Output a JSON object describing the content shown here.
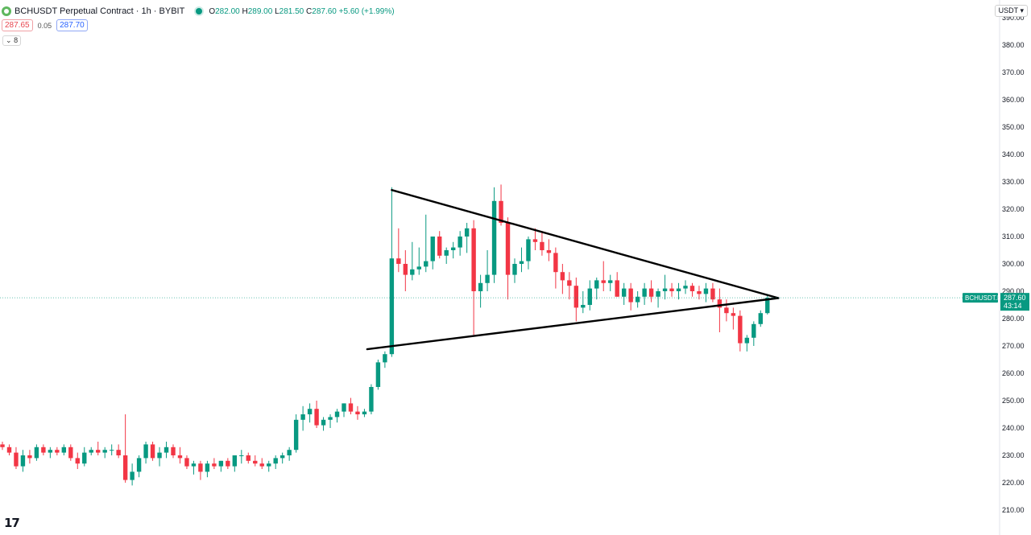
{
  "header": {
    "title": "BCHUSDT Perpetual Contract · 1h · BYBIT",
    "open_label": "O",
    "open": "282.00",
    "high_label": "H",
    "high": "289.00",
    "low_label": "L",
    "low": "281.50",
    "close_label": "C",
    "close": "287.60",
    "change": "+5.60 (+1.99%)"
  },
  "bidask": {
    "sell": "287.65",
    "spread": "0.05",
    "buy": "287.70"
  },
  "indicator_toggle": "8",
  "currency_button": "USDT",
  "logo": "17",
  "colors": {
    "up": "#089981",
    "down": "#f23645",
    "trendline": "#000000",
    "price_line": "#089981"
  },
  "chart_data": {
    "type": "candlestick",
    "symbol_label": "BCHUSDT.P",
    "last_price": "287.60",
    "countdown": "43:14",
    "ylim": [
      208,
      393
    ],
    "y_ticks": [
      "210.00",
      "220.00",
      "230.00",
      "240.00",
      "250.00",
      "260.00",
      "270.00",
      "280.00",
      "290.00",
      "300.00",
      "310.00",
      "320.00",
      "330.00",
      "340.00",
      "350.00",
      "360.00",
      "370.00",
      "380.00",
      "390.00"
    ],
    "candles": [
      [
        234,
        235,
        232,
        233
      ],
      [
        233,
        234,
        230,
        231
      ],
      [
        231,
        233,
        225,
        226
      ],
      [
        226,
        232,
        224,
        230
      ],
      [
        230,
        232,
        227,
        229
      ],
      [
        229,
        234,
        228,
        233
      ],
      [
        233,
        234,
        230,
        231
      ],
      [
        231,
        233,
        229,
        232
      ],
      [
        232,
        233,
        230,
        231
      ],
      [
        231,
        234,
        230,
        233
      ],
      [
        233,
        234,
        228,
        229
      ],
      [
        229,
        231,
        225,
        227
      ],
      [
        227,
        233,
        226,
        231
      ],
      [
        231,
        233,
        230,
        232
      ],
      [
        232,
        235,
        230,
        231
      ],
      [
        231,
        233,
        229,
        232
      ],
      [
        232,
        234,
        230,
        232
      ],
      [
        232,
        234,
        229,
        230
      ],
      [
        230,
        245,
        220,
        221
      ],
      [
        221,
        227,
        219,
        224
      ],
      [
        224,
        230,
        222,
        229
      ],
      [
        229,
        235,
        227,
        234
      ],
      [
        234,
        235,
        228,
        229
      ],
      [
        229,
        233,
        226,
        231
      ],
      [
        231,
        235,
        229,
        233
      ],
      [
        233,
        234,
        229,
        230
      ],
      [
        230,
        233,
        227,
        229
      ],
      [
        229,
        230,
        225,
        226
      ],
      [
        226,
        228,
        223,
        227
      ],
      [
        227,
        228,
        221,
        224
      ],
      [
        224,
        228,
        222,
        227
      ],
      [
        227,
        229,
        225,
        226
      ],
      [
        226,
        228,
        224,
        228
      ],
      [
        228,
        229,
        225,
        226
      ],
      [
        226,
        229,
        224,
        230
      ],
      [
        230,
        232,
        227,
        230
      ],
      [
        230,
        231,
        227,
        228
      ],
      [
        228,
        230,
        226,
        227
      ],
      [
        227,
        229,
        225,
        226
      ],
      [
        226,
        228,
        224,
        227
      ],
      [
        227,
        230,
        225,
        229
      ],
      [
        229,
        231,
        227,
        230
      ],
      [
        230,
        233,
        228,
        232
      ],
      [
        232,
        245,
        231,
        243
      ],
      [
        243,
        248,
        239,
        245
      ],
      [
        245,
        249,
        242,
        247
      ],
      [
        247,
        250,
        240,
        241
      ],
      [
        241,
        244,
        239,
        243
      ],
      [
        243,
        245,
        240,
        244
      ],
      [
        244,
        247,
        242,
        246
      ],
      [
        246,
        249,
        244,
        249
      ],
      [
        249,
        251,
        245,
        246
      ],
      [
        246,
        248,
        243,
        245
      ],
      [
        245,
        247,
        244,
        246
      ],
      [
        246,
        256,
        245,
        255
      ],
      [
        255,
        265,
        254,
        264
      ],
      [
        264,
        268,
        262,
        267
      ],
      [
        267,
        328,
        266,
        302
      ],
      [
        302,
        313,
        297,
        300
      ],
      [
        300,
        305,
        290,
        296
      ],
      [
        296,
        308,
        294,
        298
      ],
      [
        298,
        306,
        296,
        299
      ],
      [
        299,
        318,
        297,
        301
      ],
      [
        301,
        310,
        298,
        310
      ],
      [
        310,
        312,
        302,
        303
      ],
      [
        303,
        306,
        300,
        305
      ],
      [
        305,
        308,
        302,
        306
      ],
      [
        306,
        312,
        303,
        310
      ],
      [
        310,
        315,
        304,
        313
      ],
      [
        313,
        316,
        274,
        290
      ],
      [
        290,
        296,
        284,
        293
      ],
      [
        293,
        305,
        290,
        296
      ],
      [
        296,
        328,
        293,
        323
      ],
      [
        323,
        329,
        314,
        315
      ],
      [
        315,
        317,
        287,
        296
      ],
      [
        296,
        302,
        293,
        300
      ],
      [
        300,
        306,
        297,
        301
      ],
      [
        301,
        310,
        298,
        309
      ],
      [
        309,
        313,
        305,
        308
      ],
      [
        308,
        312,
        303,
        305
      ],
      [
        305,
        309,
        301,
        304
      ],
      [
        304,
        306,
        291,
        297
      ],
      [
        297,
        300,
        289,
        294
      ],
      [
        294,
        297,
        287,
        292
      ],
      [
        292,
        295,
        279,
        284
      ],
      [
        284,
        290,
        282,
        285
      ],
      [
        285,
        294,
        283,
        291
      ],
      [
        291,
        295,
        287,
        294
      ],
      [
        294,
        301,
        290,
        293
      ],
      [
        293,
        296,
        290,
        294
      ],
      [
        294,
        297,
        288,
        288
      ],
      [
        288,
        293,
        285,
        291
      ],
      [
        291,
        293,
        283,
        286
      ],
      [
        286,
        290,
        284,
        288
      ],
      [
        288,
        293,
        285,
        291
      ],
      [
        291,
        294,
        286,
        288
      ],
      [
        288,
        291,
        284,
        290
      ],
      [
        290,
        296,
        287,
        291
      ],
      [
        291,
        293,
        288,
        290
      ],
      [
        290,
        293,
        287,
        291
      ],
      [
        291,
        294,
        289,
        292
      ],
      [
        292,
        293,
        288,
        290
      ],
      [
        290,
        292,
        287,
        289
      ],
      [
        289,
        293,
        286,
        291
      ],
      [
        291,
        293,
        286,
        287
      ],
      [
        287,
        291,
        275,
        284
      ],
      [
        284,
        287,
        279,
        282
      ],
      [
        282,
        284,
        276,
        281
      ],
      [
        281,
        283,
        268,
        271
      ],
      [
        271,
        274,
        268,
        273
      ],
      [
        273,
        279,
        270,
        278
      ],
      [
        278,
        283,
        277,
        282
      ],
      [
        282,
        289,
        281.5,
        287.6
      ]
    ],
    "trendlines": [
      {
        "from": [
          57.0,
          327
        ],
        "to": [
          113.6,
          287.5
        ]
      },
      {
        "from": [
          53.4,
          268.8
        ],
        "to": [
          113.6,
          287.5
        ]
      }
    ]
  }
}
